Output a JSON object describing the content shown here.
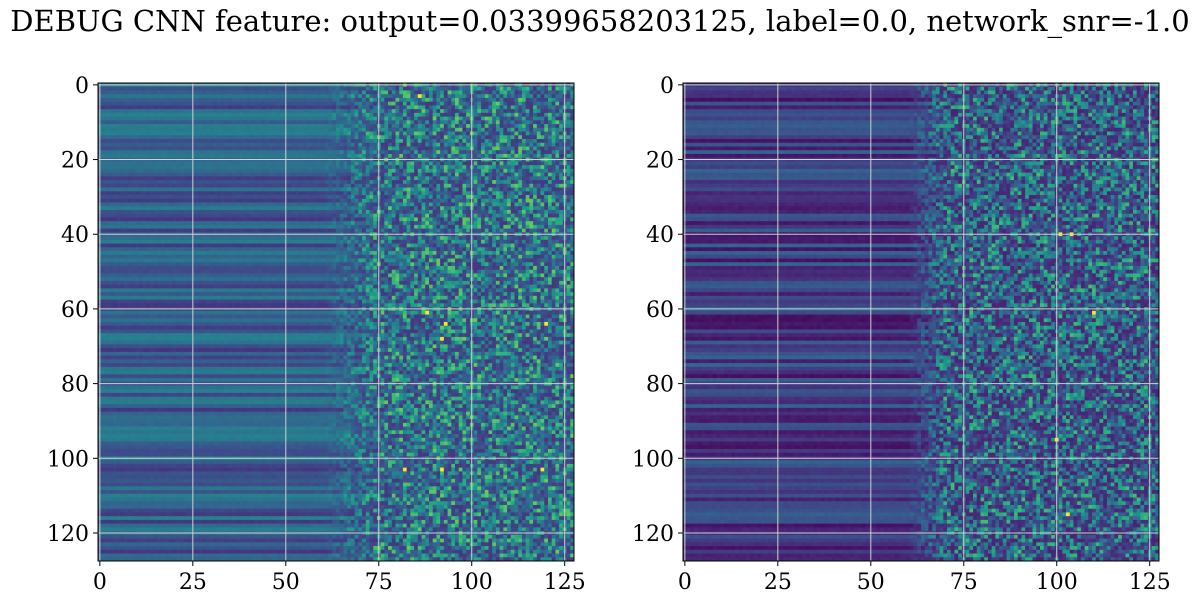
{
  "title": "DEBUG CNN feature: output=0.03399658203125, label=0.0, network_snr=-1.0",
  "chart_data": [
    {
      "type": "heatmap",
      "title": "",
      "xlabel": "",
      "ylabel": "",
      "rows": 128,
      "cols": 128,
      "xlim": [
        0,
        127
      ],
      "ylim": [
        127,
        0
      ],
      "x_ticks": [
        0,
        25,
        50,
        75,
        100,
        125
      ],
      "y_ticks": [
        0,
        20,
        40,
        60,
        80,
        100,
        120
      ],
      "x_tick_labels": [
        "0",
        "25",
        "50",
        "75",
        "100",
        "125"
      ],
      "y_tick_labels": [
        "0",
        "20",
        "40",
        "60",
        "80",
        "100",
        "120"
      ],
      "grid": true,
      "colormap": "viridis",
      "colors": {
        "low": "#440154",
        "mid": "#21918c",
        "high": "#fde725"
      },
      "description_of_pattern": {
        "smooth_region_cols": [
          0,
          60
        ],
        "noisy_region_cols": [
          75,
          127
        ],
        "base_level": 0.3,
        "hotspots": [
          [
            3,
            86
          ],
          [
            61,
            88
          ],
          [
            64,
            93
          ],
          [
            64,
            120
          ],
          [
            68,
            92
          ],
          [
            103,
            82
          ],
          [
            103,
            92
          ],
          [
            103,
            119
          ]
        ]
      }
    },
    {
      "type": "heatmap",
      "title": "",
      "xlabel": "",
      "ylabel": "",
      "rows": 128,
      "cols": 128,
      "xlim": [
        0,
        127
      ],
      "ylim": [
        127,
        0
      ],
      "x_ticks": [
        0,
        25,
        50,
        75,
        100,
        125
      ],
      "y_ticks": [
        0,
        20,
        40,
        60,
        80,
        100,
        120
      ],
      "x_tick_labels": [
        "0",
        "25",
        "50",
        "75",
        "100",
        "125"
      ],
      "y_tick_labels": [
        "0",
        "20",
        "40",
        "60",
        "80",
        "100",
        "120"
      ],
      "grid": true,
      "colormap": "viridis",
      "colors": {
        "low": "#440154",
        "mid": "#21918c",
        "high": "#fde725"
      },
      "description_of_pattern": {
        "smooth_region_cols": [
          0,
          60
        ],
        "noisy_region_cols": [
          70,
          127
        ],
        "base_level": 0.18,
        "hotspots": [
          [
            40,
            104
          ],
          [
            40,
            101
          ],
          [
            61,
            110
          ],
          [
            95,
            100
          ],
          [
            115,
            103
          ]
        ]
      }
    }
  ]
}
